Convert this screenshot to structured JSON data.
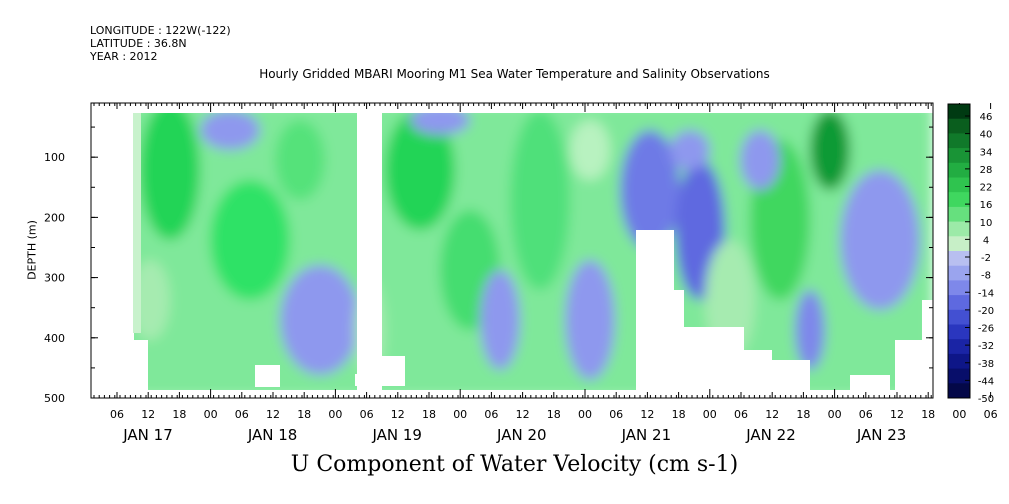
{
  "header": {
    "longitude": "LONGITUDE : 122W(-122)",
    "latitude": "LATITUDE : 36.8N",
    "year": "YEAR : 2012"
  },
  "chart_data": {
    "type": "heatmap",
    "title": "Hourly Gridded MBARI Mooring M1 Sea Water Temperature and Salinity Observations",
    "main_title": "U Component of Water Velocity (cm s-1)",
    "ylabel": "DEPTH (m)",
    "ylim": [
      500,
      10
    ],
    "y_ticks": [
      100,
      200,
      300,
      400,
      500
    ],
    "x_hour_ticks": [
      "06",
      "12",
      "18",
      "00",
      "06",
      "12",
      "18",
      "00",
      "06",
      "12",
      "18",
      "00",
      "06",
      "12",
      "18",
      "00",
      "06",
      "12",
      "18",
      "00",
      "06",
      "12",
      "18",
      "00",
      "06",
      "12",
      "18",
      "00",
      "06",
      "12"
    ],
    "x_day_labels": [
      "JAN 17",
      "JAN 18",
      "JAN 19",
      "JAN 20",
      "JAN 21",
      "JAN 22",
      "JAN 23"
    ],
    "colorbar_labels": [
      46,
      40,
      34,
      28,
      22,
      16,
      10,
      4,
      -2,
      -8,
      -14,
      -20,
      -26,
      -32,
      -38,
      -44,
      -50
    ],
    "colorbar_colors": [
      "#003a12",
      "#0a5e1e",
      "#10792a",
      "#199436",
      "#22ad42",
      "#2fc44f",
      "#3fd75f",
      "#66e07e",
      "#9ceaa8",
      "#c7efc7",
      "#b8bff0",
      "#9aa4ee",
      "#7e88ea",
      "#5e69e0",
      "#4350d2",
      "#2a36bf",
      "#1a24a5",
      "#0e1688",
      "#080e6a",
      "#040848"
    ],
    "notes": "Depth-time section of U velocity; mostly weak positive (green) values with negative (blue) bands near JAN 17 18h, JAN 19 06h, JAN 21 06-18h and JAN 22-23; blank (white) areas are missing data."
  }
}
